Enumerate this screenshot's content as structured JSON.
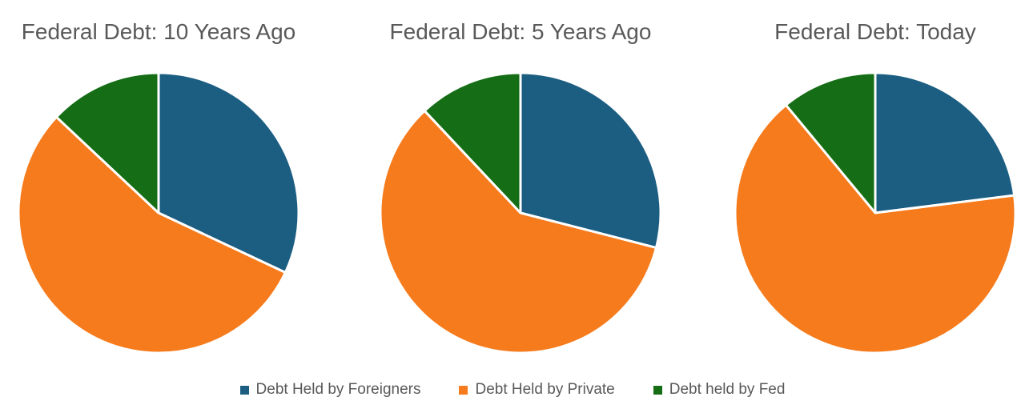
{
  "page": {
    "background": "#FFFFFF",
    "text_color": "#595959"
  },
  "chart_data": [
    {
      "type": "pie",
      "title": "Federal Debt: 10 Years Ago",
      "labels": [
        "Debt Held by Foreigners",
        "Debt Held by Private",
        "Debt held by Fed"
      ],
      "values": [
        32,
        55,
        13
      ],
      "unit": "percent-of-whole",
      "colors": [
        "#1C5E82",
        "#F67B1C",
        "#156E15"
      ],
      "start_angle_deg": 0,
      "direction": "clockwise",
      "slice_border_color": "#FFFFFF",
      "data_labels": "none"
    },
    {
      "type": "pie",
      "title": "Federal Debt: 5 Years Ago",
      "labels": [
        "Debt Held by Foreigners",
        "Debt Held by Private",
        "Debt held by Fed"
      ],
      "values": [
        29,
        59,
        12
      ],
      "unit": "percent-of-whole",
      "colors": [
        "#1C5E82",
        "#F67B1C",
        "#156E15"
      ],
      "start_angle_deg": 0,
      "direction": "clockwise",
      "slice_border_color": "#FFFFFF",
      "data_labels": "none"
    },
    {
      "type": "pie",
      "title": "Federal Debt: Today",
      "labels": [
        "Debt Held by Foreigners",
        "Debt Held by Private",
        "Debt held by Fed"
      ],
      "values": [
        23,
        66,
        11
      ],
      "unit": "percent-of-whole",
      "colors": [
        "#1C5E82",
        "#F67B1C",
        "#156E15"
      ],
      "start_angle_deg": 0,
      "direction": "clockwise",
      "slice_border_color": "#FFFFFF",
      "data_labels": "none"
    }
  ],
  "legend": {
    "position": "bottom-center",
    "items": [
      {
        "label": "Debt Held by Foreigners",
        "color": "#1C5E82",
        "marker": "square-icon"
      },
      {
        "label": "Debt Held by Private",
        "color": "#F67B1C",
        "marker": "square-icon"
      },
      {
        "label": "Debt held by Fed",
        "color": "#156E15",
        "marker": "square-icon"
      }
    ]
  }
}
